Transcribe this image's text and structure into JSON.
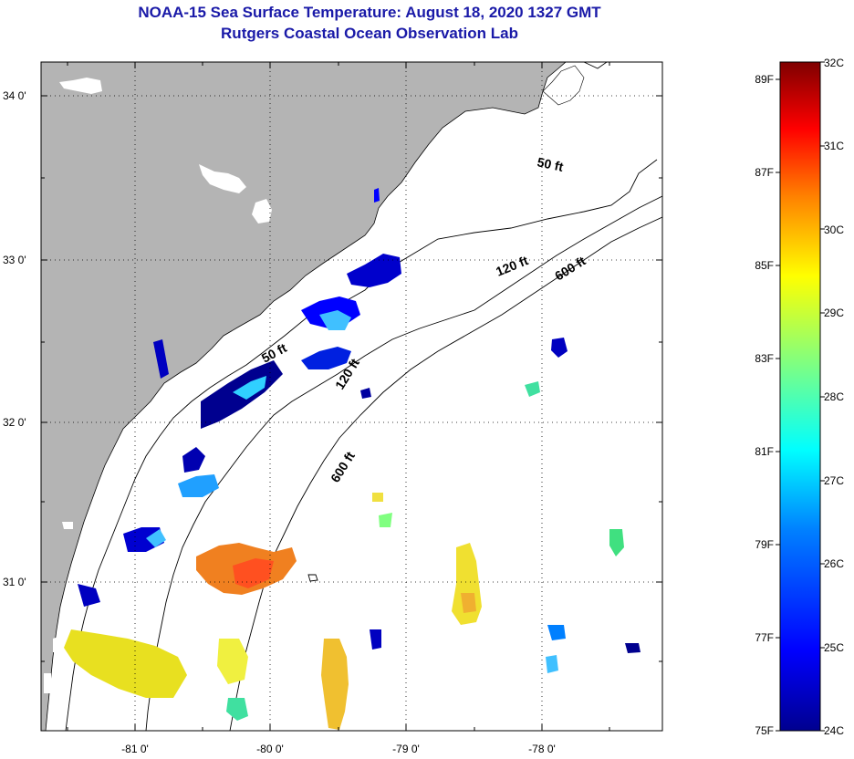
{
  "header": {
    "title": "NOAA-15 Sea Surface Temperature:  August 18, 2020 1327 GMT",
    "subtitle": "Rutgers Coastal Ocean Observation Lab"
  },
  "map": {
    "latitude_labels": [
      "34 0'",
      "33 0'",
      "32 0'",
      "31 0'"
    ],
    "longitude_labels": [
      "-81 0'",
      "-80 0'",
      "-79 0'",
      "-78 0'"
    ],
    "land_color": "#b4b4b4",
    "ocean_color": "#ffffff",
    "contour_labels": [
      "50 ft",
      "120 ft",
      "600 ft",
      "50 ft",
      "120 ft",
      "600 ft"
    ]
  },
  "colorbar": {
    "fahrenheit_labels": [
      "89F",
      "87F",
      "85F",
      "83F",
      "81F",
      "79F",
      "77F",
      "75F"
    ],
    "celsius_labels": [
      "32C",
      "31C",
      "30C",
      "29C",
      "28C",
      "27C",
      "26C",
      "25C",
      "24C"
    ],
    "colors": [
      "#7f0000",
      "#ff0000",
      "#ff8000",
      "#ffff00",
      "#80ff80",
      "#00ffff",
      "#0080ff",
      "#0000ff",
      "#00008f"
    ]
  }
}
